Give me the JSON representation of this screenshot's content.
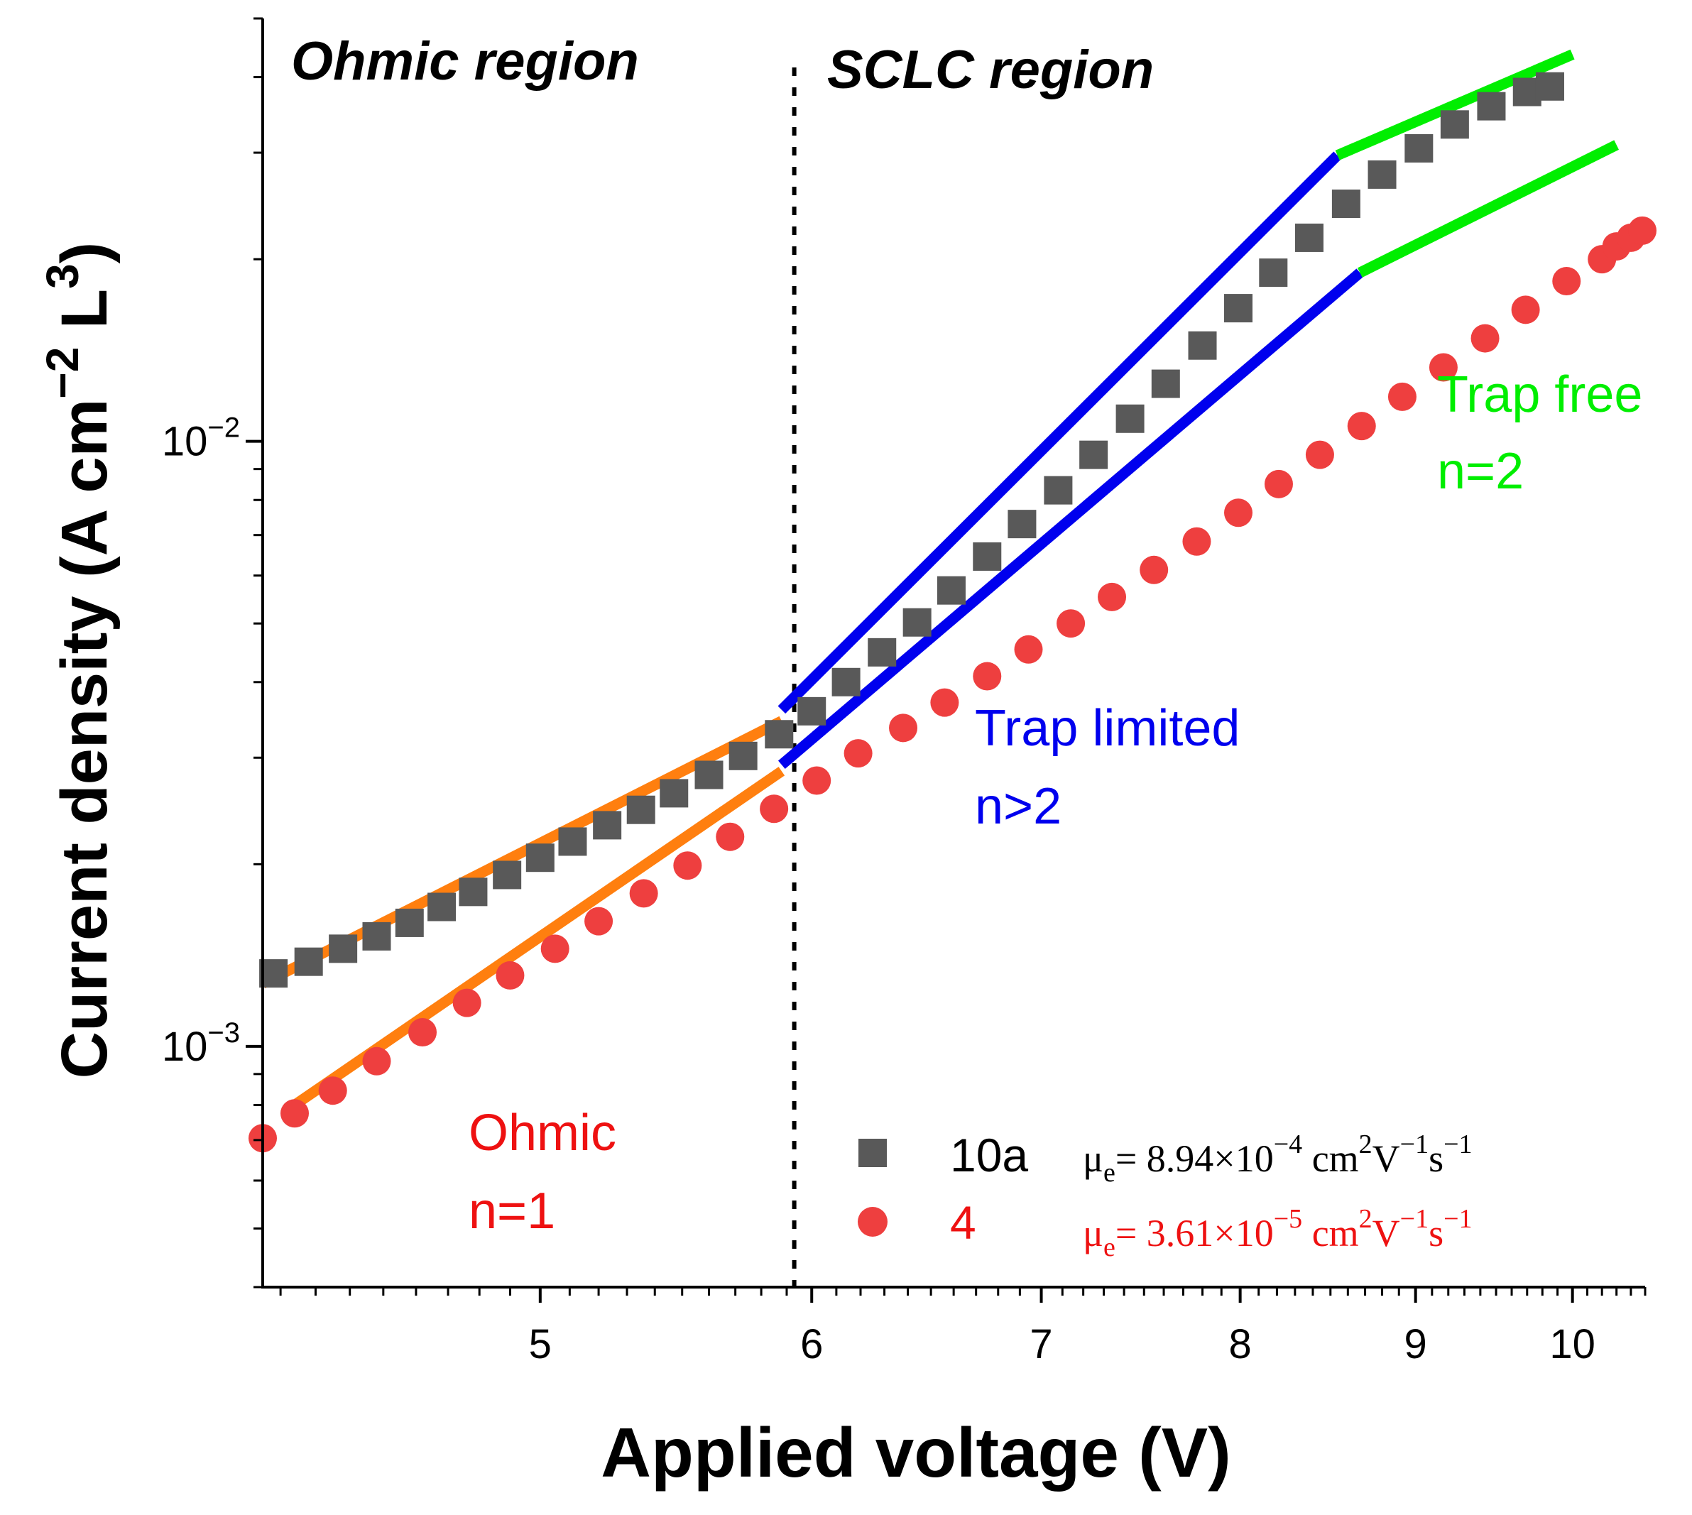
{
  "chart_data": {
    "type": "scatter",
    "xscale": "log",
    "yscale": "log",
    "xlim": [
      4.15,
      10.5
    ],
    "ylim": [
      0.0004,
      0.05
    ],
    "xlabel": "Applied voltage (V)",
    "ylabel_main": "Current density  (A cm",
    "ylabel_exp1": "−2",
    "ylabel_mid": " L",
    "ylabel_exp2": "3",
    "ylabel_end": ")",
    "x_ticks": [
      5,
      6,
      7,
      8,
      9,
      10
    ],
    "x_tick_labels": [
      "5",
      "6",
      "7",
      "8",
      "9",
      "10"
    ],
    "y_ticks": [
      {
        "value": 0.001,
        "base": "10",
        "exp": "−3"
      },
      {
        "value": 0.01,
        "base": "10",
        "exp": "−2"
      }
    ],
    "region_divider_x": 5.93,
    "regions": [
      {
        "name": "ohmic-region-label",
        "text": "Ohmic region"
      },
      {
        "name": "sclc-region-label",
        "text": "SCLC region"
      }
    ],
    "series": [
      {
        "name": "10a",
        "marker": "square",
        "color": "#595959",
        "points": [
          [
            4.18,
            0.00132
          ],
          [
            4.28,
            0.00138
          ],
          [
            4.38,
            0.00145
          ],
          [
            4.48,
            0.00152
          ],
          [
            4.58,
            0.0016
          ],
          [
            4.68,
            0.0017
          ],
          [
            4.78,
            0.0018
          ],
          [
            4.89,
            0.00192
          ],
          [
            5.0,
            0.00205
          ],
          [
            5.11,
            0.00218
          ],
          [
            5.23,
            0.00232
          ],
          [
            5.35,
            0.00246
          ],
          [
            5.47,
            0.00262
          ],
          [
            5.6,
            0.00281
          ],
          [
            5.73,
            0.00302
          ],
          [
            5.87,
            0.00328
          ],
          [
            6.0,
            0.00358
          ],
          [
            6.14,
            0.004
          ],
          [
            6.29,
            0.00448
          ],
          [
            6.44,
            0.00502
          ],
          [
            6.59,
            0.00567
          ],
          [
            6.75,
            0.00645
          ],
          [
            6.91,
            0.0073
          ],
          [
            7.08,
            0.0083
          ],
          [
            7.25,
            0.0095
          ],
          [
            7.43,
            0.0109
          ],
          [
            7.61,
            0.01245
          ],
          [
            7.8,
            0.0144
          ],
          [
            7.99,
            0.0166
          ],
          [
            8.18,
            0.019
          ],
          [
            8.38,
            0.0217
          ],
          [
            8.59,
            0.0247
          ],
          [
            8.8,
            0.0276
          ],
          [
            9.02,
            0.0305
          ],
          [
            9.24,
            0.0334
          ],
          [
            9.47,
            0.0358
          ],
          [
            9.7,
            0.0378
          ],
          [
            9.85,
            0.0386
          ]
        ]
      },
      {
        "name": "4",
        "marker": "circle",
        "color": "#ee3f3f",
        "points": [
          [
            4.15,
            0.000705
          ],
          [
            4.24,
            0.000775
          ],
          [
            4.35,
            0.000845
          ],
          [
            4.48,
            0.000945
          ],
          [
            4.62,
            0.001055
          ],
          [
            4.76,
            0.00118
          ],
          [
            4.9,
            0.00131
          ],
          [
            5.05,
            0.00145
          ],
          [
            5.2,
            0.00161
          ],
          [
            5.36,
            0.00179
          ],
          [
            5.52,
            0.00199
          ],
          [
            5.68,
            0.00222
          ],
          [
            5.85,
            0.00247
          ],
          [
            6.02,
            0.00275
          ],
          [
            6.19,
            0.00305
          ],
          [
            6.38,
            0.00336
          ],
          [
            6.56,
            0.0037
          ],
          [
            6.75,
            0.00409
          ],
          [
            6.94,
            0.00453
          ],
          [
            7.14,
            0.005
          ],
          [
            7.34,
            0.00553
          ],
          [
            7.55,
            0.00613
          ],
          [
            7.77,
            0.00683
          ],
          [
            7.99,
            0.00762
          ],
          [
            8.21,
            0.0085
          ],
          [
            8.44,
            0.0095
          ],
          [
            8.68,
            0.0106
          ],
          [
            8.92,
            0.01185
          ],
          [
            9.17,
            0.01325
          ],
          [
            9.43,
            0.0148
          ],
          [
            9.69,
            0.0165
          ],
          [
            9.96,
            0.0184
          ],
          [
            10.2,
            0.02
          ],
          [
            10.3,
            0.021
          ],
          [
            10.4,
            0.0217
          ],
          [
            10.48,
            0.0223
          ]
        ]
      }
    ],
    "fit_lines": [
      {
        "name": "fit-ohmic-10a",
        "color": "#ff7f0f",
        "from": [
          4.15,
          0.00127
        ],
        "to": [
          5.88,
          0.00345
        ]
      },
      {
        "name": "fit-ohmic-4",
        "color": "#ff7f0f",
        "from": [
          4.24,
          0.0008
        ],
        "to": [
          5.88,
          0.00285
        ]
      },
      {
        "name": "fit-traplimited-10a",
        "color": "#0000ee",
        "from": [
          5.88,
          0.0036
        ],
        "to": [
          8.54,
          0.0297
        ]
      },
      {
        "name": "fit-traplimited-4",
        "color": "#0000ee",
        "from": [
          5.88,
          0.00292
        ],
        "to": [
          8.67,
          0.019
        ]
      },
      {
        "name": "fit-trapfree-10a",
        "color": "#00ee00",
        "from": [
          8.54,
          0.0297
        ],
        "to": [
          10.0,
          0.0436
        ]
      },
      {
        "name": "fit-trapfree-4",
        "color": "#00ee00",
        "from": [
          8.67,
          0.019
        ],
        "to": [
          10.3,
          0.0309
        ]
      }
    ],
    "annotations": [
      {
        "name": "ohmic-annotation",
        "line1": "Ohmic",
        "line2": "n=1",
        "color": "#ee1111"
      },
      {
        "name": "trap-limited-annotation",
        "line1": "Trap limited",
        "line2": "n>2",
        "color": "#0000ee"
      },
      {
        "name": "trap-free-annotation",
        "line1": "Trap free",
        "line2": "n=2",
        "color": "#00ee00"
      }
    ],
    "legend": [
      {
        "label": "10a",
        "marker": "square",
        "color": "#595959",
        "text_color": "#000000",
        "mobility_prefix": "μ",
        "mobility_sub": "e",
        "mobility_eq": "= 8.94×10",
        "mobility_exp": "−4",
        "mobility_unit1": " cm",
        "mobility_unit1_exp": "2",
        "mobility_unit2": "V",
        "mobility_unit2_exp": "−1",
        "mobility_unit3": "s",
        "mobility_unit3_exp": "−1",
        "mobility_color": "#000000"
      },
      {
        "label": "4",
        "marker": "circle",
        "color": "#ee3f3f",
        "text_color": "#ee1111",
        "mobility_prefix": "μ",
        "mobility_sub": "e",
        "mobility_eq": "= 3.61×10",
        "mobility_exp": "−5",
        "mobility_unit1": " cm",
        "mobility_unit1_exp": "2",
        "mobility_unit2": "V",
        "mobility_unit2_exp": "−1",
        "mobility_unit3": "s",
        "mobility_unit3_exp": "−1",
        "mobility_color": "#ee1111"
      }
    ]
  }
}
